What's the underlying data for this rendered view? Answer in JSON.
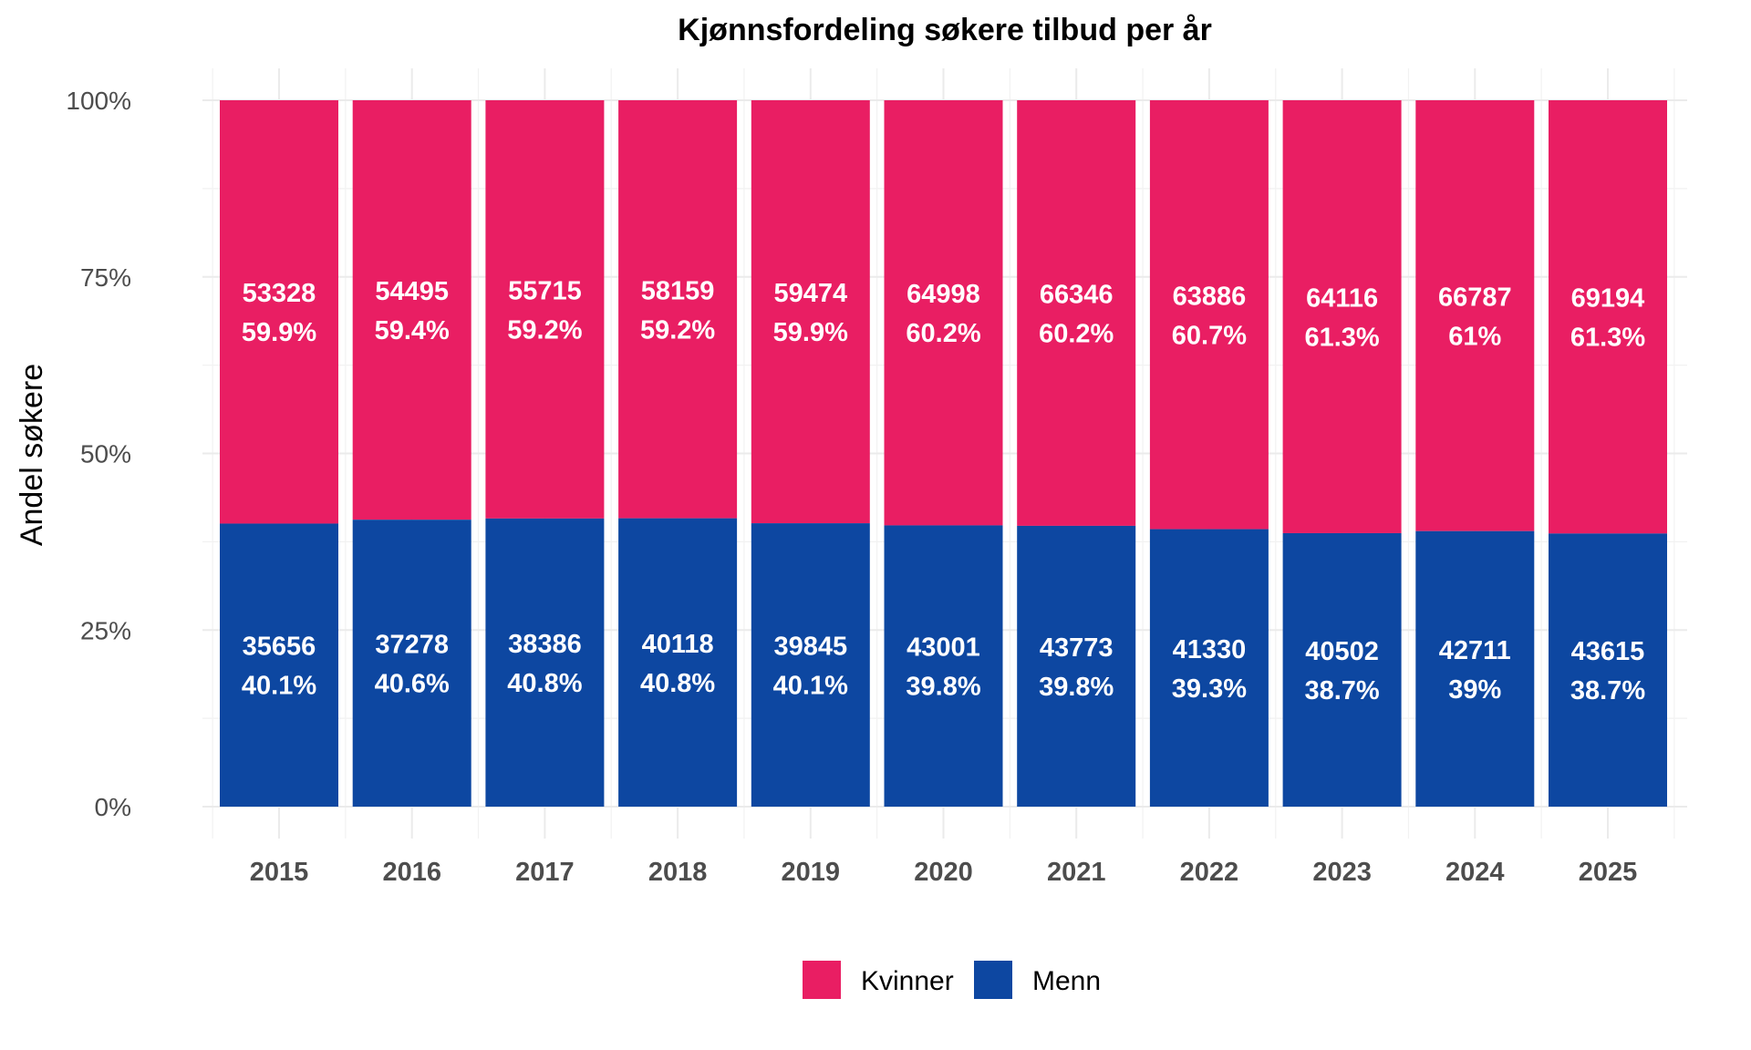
{
  "chart_data": {
    "type": "bar",
    "stacked": "percent",
    "title": "Kjønnsfordeling søkere tilbud per år",
    "xlabel": "",
    "ylabel": "Andel søkere",
    "ylim": [
      0,
      1
    ],
    "y_ticks": [
      "0%",
      "25%",
      "50%",
      "75%",
      "100%"
    ],
    "y_tick_values": [
      0,
      0.25,
      0.5,
      0.75,
      1
    ],
    "grid": true,
    "legend_position": "bottom",
    "categories": [
      "2015",
      "2016",
      "2017",
      "2018",
      "2019",
      "2020",
      "2021",
      "2022",
      "2023",
      "2024",
      "2025"
    ],
    "series": [
      {
        "name": "Kvinner",
        "color": "#e91e63",
        "values": [
          53328,
          54495,
          55715,
          58159,
          59474,
          64998,
          66346,
          63886,
          64116,
          66787,
          69194
        ],
        "percent_labels": [
          "59.9%",
          "59.4%",
          "59.2%",
          "59.2%",
          "59.9%",
          "60.2%",
          "60.2%",
          "60.7%",
          "61.3%",
          "61%",
          "61.3%"
        ]
      },
      {
        "name": "Menn",
        "color": "#0d47a1",
        "values": [
          35656,
          37278,
          38386,
          40118,
          39845,
          43001,
          43773,
          41330,
          40502,
          42711,
          43615
        ],
        "percent_labels": [
          "40.1%",
          "40.6%",
          "40.8%",
          "40.8%",
          "40.1%",
          "39.8%",
          "39.8%",
          "39.3%",
          "38.7%",
          "39%",
          "38.7%"
        ]
      }
    ]
  }
}
